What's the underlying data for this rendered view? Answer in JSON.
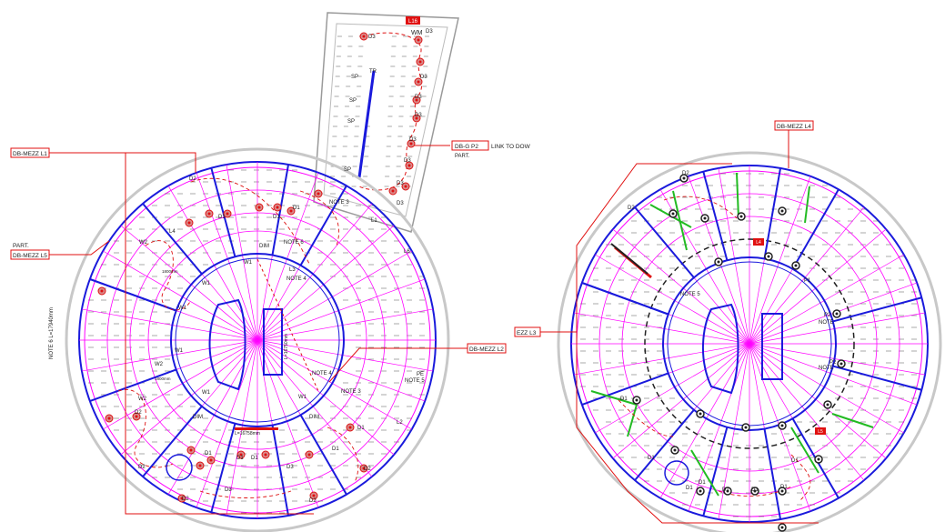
{
  "drawing": {
    "colors": {
      "grid_magenta": "#ff00ff",
      "wall_blue": "#1a1adc",
      "wall_green": "#22bb22",
      "circuit_red": "#dd1111",
      "callout_red": "#e01010",
      "base_grey": "#9a9a9a",
      "ink": "#222222"
    },
    "callouts": {
      "db_mezz_l1": "DB-MEZZ L1",
      "db_mezz_l5": "DB-MEZZ L5",
      "part_left": "PART.",
      "db_mezz_l2": "DB-MEZZ L2",
      "db_g_p2": "DB-G P2",
      "link_to_down": "LINK TO DOW",
      "part_tower": "PART.",
      "db_mezz_l4": "DB-MEZZ L4",
      "db_mezz_l3": "EZZ L3"
    },
    "tower": {
      "tag_top": "L16",
      "wm": "WM",
      "sp_labels": [
        "SP",
        "SP",
        "SP",
        "SP"
      ],
      "tr_label": "TR",
      "d_labels": [
        "D3",
        "D3",
        "D3",
        "D3",
        "D3",
        "D3",
        "D3",
        "D3"
      ],
      "bottom_label": "D3"
    },
    "left_plan": {
      "d_labels": [
        "D2",
        "D1",
        "D1",
        "D1",
        "D1",
        "D1",
        "D2",
        "D2",
        "D2",
        "D2",
        "D3",
        "D2",
        "D3",
        "D1",
        "D1",
        "D1"
      ],
      "w_labels": [
        "W1",
        "W1",
        "W1",
        "W1",
        "W1",
        "W1",
        "W2",
        "W2",
        "W2"
      ],
      "note_labels": [
        "NOTE 3",
        "NOTE 4",
        "NOTE 4",
        "NOTE 3",
        "NOTE 6",
        "NOTE 5",
        "PE"
      ],
      "dim_labels": [
        "DIM",
        "DIM",
        "DIM"
      ],
      "length_label": "L=16758mm",
      "side_note": "NOTE 6\nL=17940mm",
      "center_note": "L=16750mm",
      "l4": "L4",
      "l6": "L6",
      "l1": "L1",
      "l2": "L2",
      "l3": "L3",
      "small_tags": [
        "1800mm",
        "1800mm"
      ]
    },
    "right_plan": {
      "d_labels": [
        "D2",
        "D1",
        "D1",
        "D1",
        "D1",
        "D1",
        "D1",
        "D1",
        "D1",
        "D2"
      ],
      "p_labels": [
        "P1",
        "P2",
        "P2"
      ],
      "note_labels": [
        "NOTE 5",
        "NOTE",
        "NOTE"
      ],
      "tag_a": "L4",
      "tag_b": "L5"
    }
  }
}
